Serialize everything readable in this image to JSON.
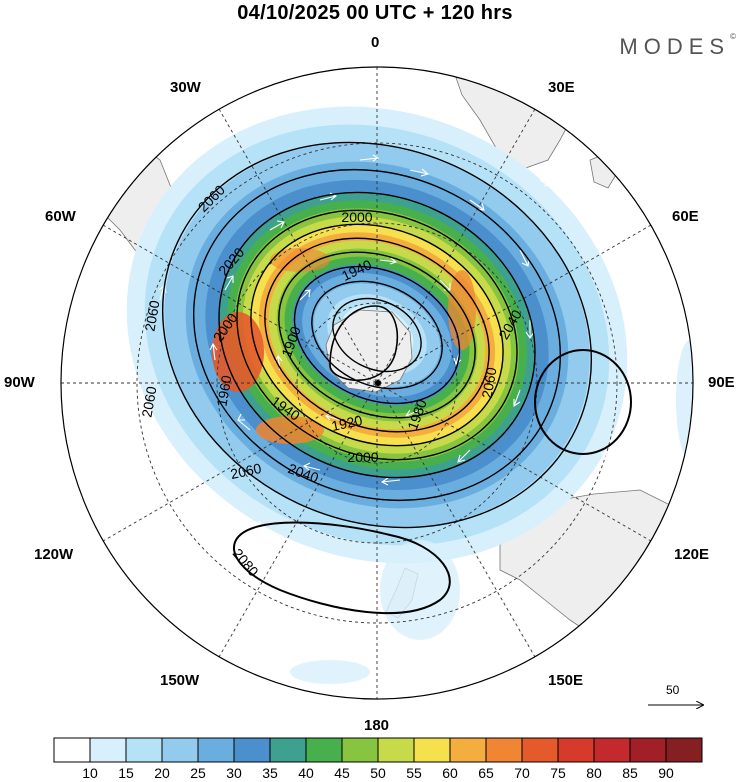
{
  "title": "04/10/2025  00 UTC  + 120 hrs",
  "brand": "MODES",
  "brand_mark": "©",
  "map": {
    "projection": "south polar stereographic",
    "longitude_labels": {
      "top": "0",
      "bottom": "180",
      "left": "90W",
      "right": "90E",
      "nw_upper": "30W",
      "nw_lower": "60W",
      "ne_upper": "30E",
      "ne_lower": "60E",
      "sw_upper": "120W",
      "sw_lower": "150W",
      "se_upper": "120E",
      "se_lower": "150E"
    },
    "contour_labels": [
      {
        "id": "c2060a",
        "text": "2060"
      },
      {
        "id": "c2000a",
        "text": "2000"
      },
      {
        "id": "c2020a",
        "text": "2020"
      },
      {
        "id": "c1940a",
        "text": "1940"
      },
      {
        "id": "c2000b",
        "text": "2000"
      },
      {
        "id": "c1900a",
        "text": "1900"
      },
      {
        "id": "c2040a",
        "text": "2040"
      },
      {
        "id": "c2060b",
        "text": "2060"
      },
      {
        "id": "c1960a",
        "text": "1960"
      },
      {
        "id": "c1940b",
        "text": "1940"
      },
      {
        "id": "c1920a",
        "text": "1920"
      },
      {
        "id": "c1980a",
        "text": "1980"
      },
      {
        "id": "c2000c",
        "text": "2000"
      },
      {
        "id": "c2060c",
        "text": "2060"
      },
      {
        "id": "c2060d",
        "text": "2060"
      },
      {
        "id": "c2040b",
        "text": "2040"
      },
      {
        "id": "c2060e",
        "text": "2060"
      },
      {
        "id": "c2080a",
        "text": "2080"
      }
    ]
  },
  "vector_reference": {
    "value": "50"
  },
  "colorbar": {
    "ticks": [
      "10",
      "15",
      "20",
      "25",
      "30",
      "35",
      "40",
      "45",
      "50",
      "55",
      "60",
      "65",
      "70",
      "75",
      "80",
      "85",
      "90"
    ],
    "colors": [
      "#ffffff",
      "#d8f0fb",
      "#b6e2f7",
      "#93cbee",
      "#6aaee0",
      "#4b8fcc",
      "#3ea18f",
      "#47b04d",
      "#87c43f",
      "#c7da4a",
      "#f6e04d",
      "#f4ae3f",
      "#f08533",
      "#e55a2b",
      "#d63a2a",
      "#c42a2d",
      "#a11f26",
      "#861f22"
    ]
  }
}
